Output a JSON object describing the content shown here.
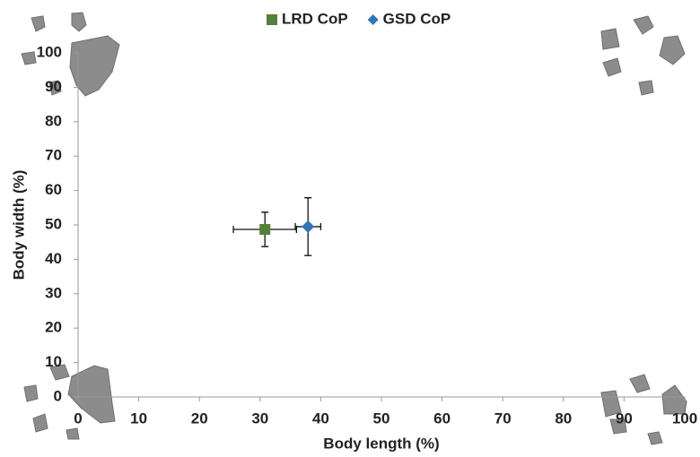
{
  "chart_data": {
    "type": "scatter",
    "xlabel": "Body length (%)",
    "ylabel": "Body width (%)",
    "xlim": [
      0,
      100
    ],
    "ylim": [
      0,
      100
    ],
    "xticks": [
      0,
      10,
      20,
      30,
      40,
      50,
      60,
      70,
      80,
      90,
      100
    ],
    "yticks": [
      0,
      10,
      20,
      30,
      40,
      50,
      60,
      70,
      80,
      90,
      100
    ],
    "grid": false,
    "legend": "top",
    "series": [
      {
        "name": "LRD CoP",
        "color": "#538135",
        "marker": "square",
        "x": [
          30.8
        ],
        "values": [
          48.7
        ],
        "x_errors": [
          5.2
        ],
        "y_errors": [
          5.0
        ]
      },
      {
        "name": "GSD CoP",
        "color": "#2e75b6",
        "marker": "diamond",
        "x": [
          37.9
        ],
        "values": [
          49.5
        ],
        "x_errors": [
          2.1
        ],
        "y_errors": [
          8.4
        ]
      }
    ]
  }
}
